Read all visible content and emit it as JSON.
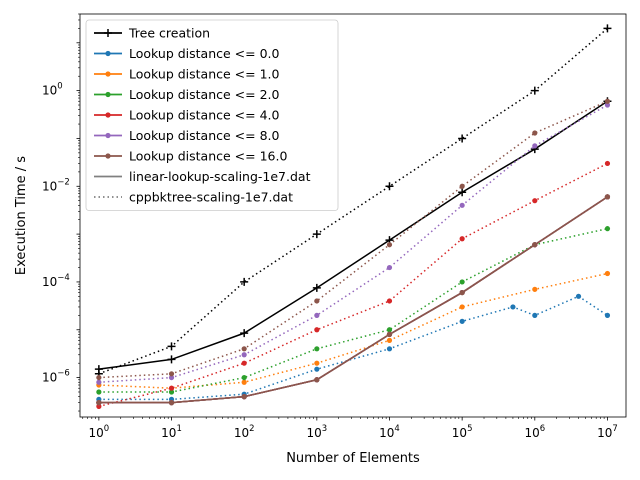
{
  "chart_data": {
    "type": "line",
    "title": "",
    "xlabel": "Number of Elements",
    "ylabel": "Execution Time / s",
    "xscale": "log",
    "yscale": "log",
    "xlim": [
      0.55,
      18000000
    ],
    "ylim": [
      1.5e-07,
      40
    ],
    "grid": false,
    "legend_position": "top-left",
    "x_ticks": [
      {
        "value": 1,
        "base": "10",
        "exp": "0"
      },
      {
        "value": 10,
        "base": "10",
        "exp": "1"
      },
      {
        "value": 100,
        "base": "10",
        "exp": "2"
      },
      {
        "value": 1000,
        "base": "10",
        "exp": "3"
      },
      {
        "value": 10000,
        "base": "10",
        "exp": "4"
      },
      {
        "value": 100000,
        "base": "10",
        "exp": "5"
      },
      {
        "value": 1000000,
        "base": "10",
        "exp": "6"
      },
      {
        "value": 10000000,
        "base": "10",
        "exp": "7"
      }
    ],
    "y_ticks": [
      {
        "value": 1e-06,
        "base": "10",
        "exp": "−6"
      },
      {
        "value": 0.0001,
        "base": "10",
        "exp": "−4"
      },
      {
        "value": 0.01,
        "base": "10",
        "exp": "−2"
      },
      {
        "value": 1,
        "base": "10",
        "exp": "0"
      }
    ],
    "legend": [
      {
        "label": "Tree creation",
        "color": "#000000",
        "style": "solid",
        "marker": "plus"
      },
      {
        "label": "Lookup distance <= 0.0",
        "color": "#1f77b4",
        "style": "solid",
        "marker": "dot"
      },
      {
        "label": "Lookup distance <= 1.0",
        "color": "#ff7f0e",
        "style": "solid",
        "marker": "dot"
      },
      {
        "label": "Lookup distance <= 2.0",
        "color": "#2ca02c",
        "style": "solid",
        "marker": "dot"
      },
      {
        "label": "Lookup distance <= 4.0",
        "color": "#d62728",
        "style": "solid",
        "marker": "dot"
      },
      {
        "label": "Lookup distance <= 8.0",
        "color": "#9467bd",
        "style": "solid",
        "marker": "dot"
      },
      {
        "label": "Lookup distance <= 16.0",
        "color": "#8c564b",
        "style": "solid",
        "marker": "dot"
      },
      {
        "label": "linear-lookup-scaling-1e7.dat",
        "color": "#808080",
        "style": "solid",
        "marker": "none"
      },
      {
        "label": "cppbktree-scaling-1e7.dat",
        "color": "#808080",
        "style": "dotted",
        "marker": "none"
      }
    ],
    "series": [
      {
        "name": "Tree creation",
        "file": "linear",
        "color": "#000000",
        "style": "solid",
        "marker": "plus",
        "x": [
          1,
          10,
          100,
          1000,
          10000,
          100000,
          1000000,
          10000000
        ],
        "y": [
          1.5e-06,
          2.4e-06,
          8.5e-06,
          7.5e-05,
          0.00075,
          0.0075,
          0.06,
          0.6
        ]
      },
      {
        "name": "Tree creation",
        "file": "cppbktree",
        "color": "#000000",
        "style": "dotted",
        "marker": "plus",
        "x": [
          1,
          10,
          100,
          1000,
          10000,
          100000,
          1000000,
          10000000
        ],
        "y": [
          1.2e-06,
          4.5e-06,
          0.0001,
          0.001,
          0.01,
          0.1,
          1.0,
          20.0
        ]
      },
      {
        "name": "Lookup distance <= 0.0",
        "file": "linear",
        "color": "#1f77b4",
        "style": "solid",
        "marker": "dot",
        "x": [
          1,
          10,
          100,
          1000,
          10000,
          100000,
          1000000,
          10000000
        ],
        "y": [
          3e-07,
          3e-07,
          4e-07,
          9e-07,
          8e-06,
          6e-05,
          0.0006,
          0.006
        ]
      },
      {
        "name": "Lookup distance <= 0.0",
        "file": "cppbktree",
        "color": "#1f77b4",
        "style": "dotted",
        "marker": "dot",
        "x": [
          1,
          10,
          100,
          1000,
          10000,
          100000,
          500000,
          1000000,
          4000000,
          10000000
        ],
        "y": [
          3.5e-07,
          3.5e-07,
          4.5e-07,
          1.5e-06,
          4e-06,
          1.5e-05,
          3e-05,
          2e-05,
          5e-05,
          2e-05
        ]
      },
      {
        "name": "Lookup distance <= 1.0",
        "file": "linear",
        "color": "#ff7f0e",
        "style": "solid",
        "marker": "dot",
        "x": [
          1,
          10,
          100,
          1000,
          10000,
          100000,
          1000000,
          10000000
        ],
        "y": [
          3e-07,
          3e-07,
          4e-07,
          9e-07,
          8e-06,
          6e-05,
          0.0006,
          0.006
        ]
      },
      {
        "name": "Lookup distance <= 1.0",
        "file": "cppbktree",
        "color": "#ff7f0e",
        "style": "dotted",
        "marker": "dot",
        "x": [
          1,
          10,
          100,
          1000,
          10000,
          100000,
          1000000,
          10000000
        ],
        "y": [
          7e-07,
          6e-07,
          8e-07,
          2e-06,
          6e-06,
          3e-05,
          7e-05,
          0.00015
        ]
      },
      {
        "name": "Lookup distance <= 2.0",
        "file": "linear",
        "color": "#2ca02c",
        "style": "solid",
        "marker": "dot",
        "x": [
          1,
          10,
          100,
          1000,
          10000,
          100000,
          1000000,
          10000000
        ],
        "y": [
          3e-07,
          3e-07,
          4e-07,
          9e-07,
          8e-06,
          6e-05,
          0.0006,
          0.006
        ]
      },
      {
        "name": "Lookup distance <= 2.0",
        "file": "cppbktree",
        "color": "#2ca02c",
        "style": "dotted",
        "marker": "dot",
        "x": [
          1,
          10,
          100,
          1000,
          10000,
          100000,
          1000000,
          10000000
        ],
        "y": [
          5e-07,
          5e-07,
          1e-06,
          4e-06,
          1e-05,
          0.0001,
          0.0006,
          0.0013
        ]
      },
      {
        "name": "Lookup distance <= 4.0",
        "file": "linear",
        "color": "#d62728",
        "style": "solid",
        "marker": "dot",
        "x": [
          1,
          10,
          100,
          1000,
          10000,
          100000,
          1000000,
          10000000
        ],
        "y": [
          3e-07,
          3e-07,
          4e-07,
          9e-07,
          8e-06,
          6e-05,
          0.0006,
          0.006
        ]
      },
      {
        "name": "Lookup distance <= 4.0",
        "file": "cppbktree",
        "color": "#d62728",
        "style": "dotted",
        "marker": "dot",
        "x": [
          1,
          10,
          100,
          1000,
          10000,
          100000,
          1000000,
          10000000
        ],
        "y": [
          2.5e-07,
          6e-07,
          2e-06,
          1e-05,
          4e-05,
          0.0008,
          0.005,
          0.03
        ]
      },
      {
        "name": "Lookup distance <= 8.0",
        "file": "linear",
        "color": "#9467bd",
        "style": "solid",
        "marker": "dot",
        "x": [
          1,
          10,
          100,
          1000,
          10000,
          100000,
          1000000,
          10000000
        ],
        "y": [
          3e-07,
          3e-07,
          4e-07,
          9e-07,
          8e-06,
          6e-05,
          0.0006,
          0.006
        ]
      },
      {
        "name": "Lookup distance <= 8.0",
        "file": "cppbktree",
        "color": "#9467bd",
        "style": "dotted",
        "marker": "dot",
        "x": [
          1,
          10,
          100,
          1000,
          10000,
          100000,
          1000000,
          10000000
        ],
        "y": [
          8e-07,
          1e-06,
          3e-06,
          2e-05,
          0.0002,
          0.004,
          0.07,
          0.5
        ]
      },
      {
        "name": "Lookup distance <= 16.0",
        "file": "linear",
        "color": "#8c564b",
        "style": "solid",
        "marker": "dot",
        "x": [
          1,
          10,
          100,
          1000,
          10000,
          100000,
          1000000,
          10000000
        ],
        "y": [
          3e-07,
          3e-07,
          4e-07,
          9e-07,
          8e-06,
          6e-05,
          0.0006,
          0.006
        ]
      },
      {
        "name": "Lookup distance <= 16.0",
        "file": "cppbktree",
        "color": "#8c564b",
        "style": "dotted",
        "marker": "dot",
        "x": [
          1,
          10,
          100,
          1000,
          10000,
          100000,
          1000000,
          10000000
        ],
        "y": [
          1e-06,
          1.2e-06,
          4e-06,
          4e-05,
          0.0006,
          0.01,
          0.13,
          0.6
        ]
      }
    ]
  }
}
